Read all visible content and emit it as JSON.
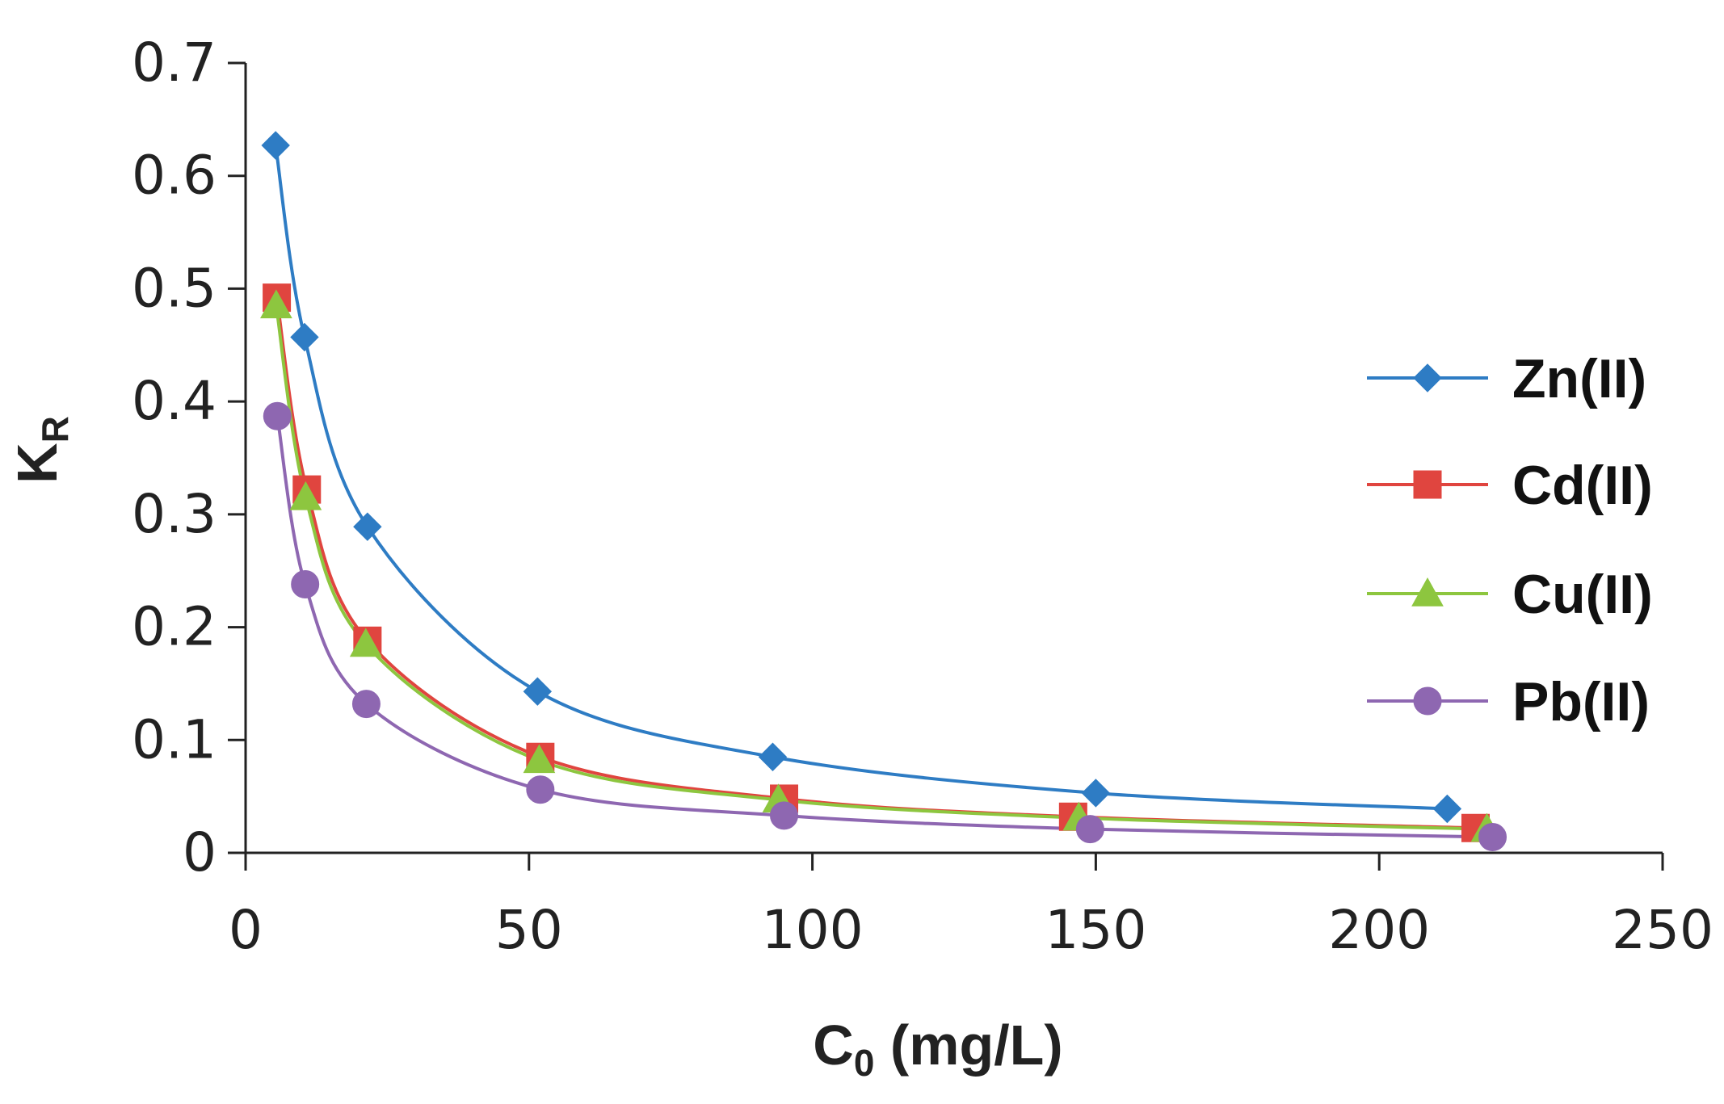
{
  "chart_data": {
    "type": "line",
    "title": "",
    "xlabel": "C",
    "xlabel_sub": "0",
    "xlabel_rest": " (mg/L)",
    "ylabel": "K",
    "ylabel_sub": "R",
    "xlim": [
      0,
      250
    ],
    "ylim": [
      0,
      0.7
    ],
    "xticks": [
      0,
      50,
      100,
      150,
      200,
      250
    ],
    "yticks": [
      0,
      0.1,
      0.2,
      0.3,
      0.4,
      0.5,
      0.6,
      0.7
    ],
    "xtick_labels": [
      "0",
      "50",
      "100",
      "150",
      "200",
      "250"
    ],
    "ytick_labels": [
      "0",
      "0.1",
      "0.2",
      "0.3",
      "0.4",
      "0.5",
      "0.6",
      "0.7"
    ],
    "grid": false,
    "legend_position": "right",
    "series": [
      {
        "name": "Zn(II)",
        "marker": "diamond",
        "color": "#2E7CC4",
        "x": [
          5.3,
          10.4,
          21.5,
          51.5,
          93,
          150,
          212
        ],
        "y": [
          0.627,
          0.457,
          0.289,
          0.143,
          0.085,
          0.053,
          0.039
        ]
      },
      {
        "name": "Cd(II)",
        "marker": "square",
        "color": "#E0453F",
        "x": [
          5.5,
          10.8,
          21.5,
          52,
          95,
          146,
          217
        ],
        "y": [
          0.492,
          0.322,
          0.188,
          0.085,
          0.048,
          0.032,
          0.022
        ]
      },
      {
        "name": "Cu(II)",
        "marker": "triangle",
        "color": "#8DC63F",
        "x": [
          5.4,
          10.6,
          21.2,
          51.8,
          94,
          147,
          219
        ],
        "y": [
          0.485,
          0.315,
          0.185,
          0.082,
          0.047,
          0.031,
          0.021
        ]
      },
      {
        "name": "Pb(II)",
        "marker": "circle",
        "color": "#8E67B1",
        "x": [
          5.6,
          10.5,
          21.3,
          52,
          95,
          149,
          220
        ],
        "y": [
          0.387,
          0.238,
          0.132,
          0.056,
          0.033,
          0.021,
          0.014
        ]
      }
    ]
  }
}
